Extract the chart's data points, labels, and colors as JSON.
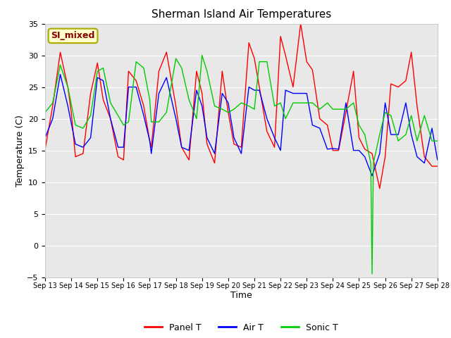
{
  "title": "Sherman Island Air Temperatures",
  "xlabel": "Time",
  "ylabel": "Temperature (C)",
  "ylim": [
    -5,
    35
  ],
  "xlim": [
    0,
    15
  ],
  "x_tick_labels": [
    "Sep 13",
    "Sep 14",
    "Sep 15",
    "Sep 16",
    "Sep 17",
    "Sep 18",
    "Sep 19",
    "Sep 20",
    "Sep 21",
    "Sep 22",
    "Sep 23",
    "Sep 24",
    "Sep 25",
    "Sep 26",
    "Sep 27",
    "Sep 28"
  ],
  "label_box_text": "SI_mixed",
  "label_box_facecolor": "#ffffcc",
  "label_box_edgecolor": "#aaaa00",
  "label_box_text_color": "#880000",
  "fig_bg_color": "#ffffff",
  "plot_bg_color": "#e8e8e8",
  "panel_t_color": "#ff0000",
  "air_t_color": "#0000ff",
  "sonic_t_color": "#00cc00",
  "panel_t_x": [
    0.0,
    0.29,
    0.58,
    0.87,
    1.0,
    1.16,
    1.45,
    1.74,
    2.0,
    2.22,
    2.5,
    2.79,
    3.0,
    3.19,
    3.48,
    3.77,
    4.0,
    4.06,
    4.35,
    4.64,
    5.0,
    5.22,
    5.5,
    5.79,
    6.0,
    6.19,
    6.48,
    6.77,
    7.0,
    7.22,
    7.5,
    7.79,
    8.0,
    8.19,
    8.48,
    8.77,
    9.0,
    9.19,
    9.48,
    9.77,
    10.0,
    10.22,
    10.5,
    10.79,
    11.0,
    11.22,
    11.5,
    11.79,
    12.0,
    12.22,
    12.5,
    12.79,
    13.0,
    13.22,
    13.5,
    13.79,
    14.0,
    14.22,
    14.5,
    14.79,
    15.0
  ],
  "panel_t_y": [
    15.2,
    22.0,
    30.5,
    25.0,
    21.0,
    14.0,
    14.5,
    24.0,
    28.8,
    23.0,
    20.0,
    14.0,
    13.5,
    27.5,
    26.0,
    22.0,
    16.5,
    15.5,
    27.5,
    30.5,
    22.0,
    15.5,
    13.5,
    27.5,
    24.0,
    16.0,
    13.0,
    27.5,
    21.0,
    16.0,
    15.5,
    32.0,
    29.5,
    25.0,
    18.0,
    15.5,
    33.0,
    30.0,
    25.0,
    35.0,
    29.0,
    27.7,
    20.0,
    19.0,
    15.0,
    15.0,
    21.0,
    27.5,
    17.0,
    15.2,
    14.5,
    9.0,
    14.0,
    25.5,
    25.0,
    26.0,
    30.5,
    22.0,
    14.0,
    12.5,
    12.5
  ],
  "air_t_x": [
    0.0,
    0.29,
    0.58,
    0.87,
    1.16,
    1.45,
    1.74,
    2.0,
    2.22,
    2.5,
    2.79,
    3.0,
    3.19,
    3.48,
    3.77,
    4.0,
    4.06,
    4.35,
    4.64,
    5.0,
    5.22,
    5.5,
    5.79,
    6.0,
    6.19,
    6.48,
    6.77,
    7.0,
    7.22,
    7.5,
    7.79,
    8.0,
    8.19,
    8.48,
    8.77,
    9.0,
    9.19,
    9.48,
    9.77,
    10.0,
    10.22,
    10.5,
    10.79,
    11.0,
    11.22,
    11.5,
    11.79,
    12.0,
    12.22,
    12.5,
    12.79,
    13.0,
    13.22,
    13.5,
    13.79,
    14.0,
    14.22,
    14.5,
    14.79,
    15.0
  ],
  "air_t_y": [
    17.0,
    20.0,
    27.0,
    22.0,
    16.0,
    15.5,
    17.0,
    26.5,
    26.0,
    20.0,
    15.5,
    15.5,
    25.0,
    25.0,
    20.5,
    16.5,
    14.5,
    24.0,
    26.5,
    20.0,
    15.5,
    15.0,
    24.5,
    22.0,
    17.0,
    14.5,
    24.0,
    22.5,
    17.0,
    14.5,
    25.0,
    24.5,
    24.5,
    20.0,
    17.0,
    15.0,
    24.5,
    24.0,
    24.0,
    24.0,
    19.0,
    18.5,
    15.2,
    15.3,
    15.2,
    22.5,
    15.0,
    15.0,
    14.0,
    11.0,
    14.5,
    22.5,
    17.5,
    17.5,
    22.5,
    17.5,
    14.0,
    13.0,
    18.5,
    13.5
  ],
  "sonic_t_x": [
    0.0,
    0.29,
    0.58,
    0.87,
    1.16,
    1.45,
    1.74,
    2.0,
    2.22,
    2.5,
    2.79,
    3.0,
    3.19,
    3.48,
    3.77,
    4.0,
    4.06,
    4.35,
    4.64,
    5.0,
    5.22,
    5.5,
    5.79,
    6.0,
    6.19,
    6.48,
    6.77,
    7.0,
    7.22,
    7.5,
    7.79,
    8.0,
    8.19,
    8.48,
    8.77,
    9.0,
    9.19,
    9.48,
    9.77,
    10.0,
    10.22,
    10.5,
    10.79,
    11.0,
    11.22,
    11.5,
    11.79,
    12.0,
    12.22,
    12.45,
    12.5,
    12.55,
    12.79,
    13.0,
    13.22,
    13.5,
    13.79,
    14.0,
    14.22,
    14.5,
    14.79,
    15.0
  ],
  "sonic_t_y": [
    21.0,
    22.5,
    28.5,
    25.0,
    19.0,
    18.5,
    20.5,
    27.5,
    28.0,
    22.5,
    20.5,
    19.0,
    19.5,
    29.0,
    28.0,
    23.0,
    19.5,
    19.5,
    21.0,
    29.5,
    28.0,
    23.0,
    20.0,
    30.0,
    27.5,
    22.0,
    21.5,
    21.0,
    21.5,
    22.5,
    22.0,
    21.5,
    29.0,
    29.0,
    22.0,
    22.5,
    20.0,
    22.5,
    22.5,
    22.5,
    22.5,
    21.5,
    22.5,
    21.5,
    21.5,
    21.5,
    22.5,
    19.0,
    17.5,
    13.0,
    -4.5,
    13.0,
    17.5,
    21.0,
    20.5,
    16.5,
    17.5,
    20.5,
    16.5,
    20.5,
    16.5,
    16.5
  ],
  "yticks": [
    -5,
    0,
    5,
    10,
    15,
    20,
    25,
    30,
    35
  ],
  "grid_color": "#ffffff",
  "legend_labels": [
    "Panel T",
    "Air T",
    "Sonic T"
  ]
}
